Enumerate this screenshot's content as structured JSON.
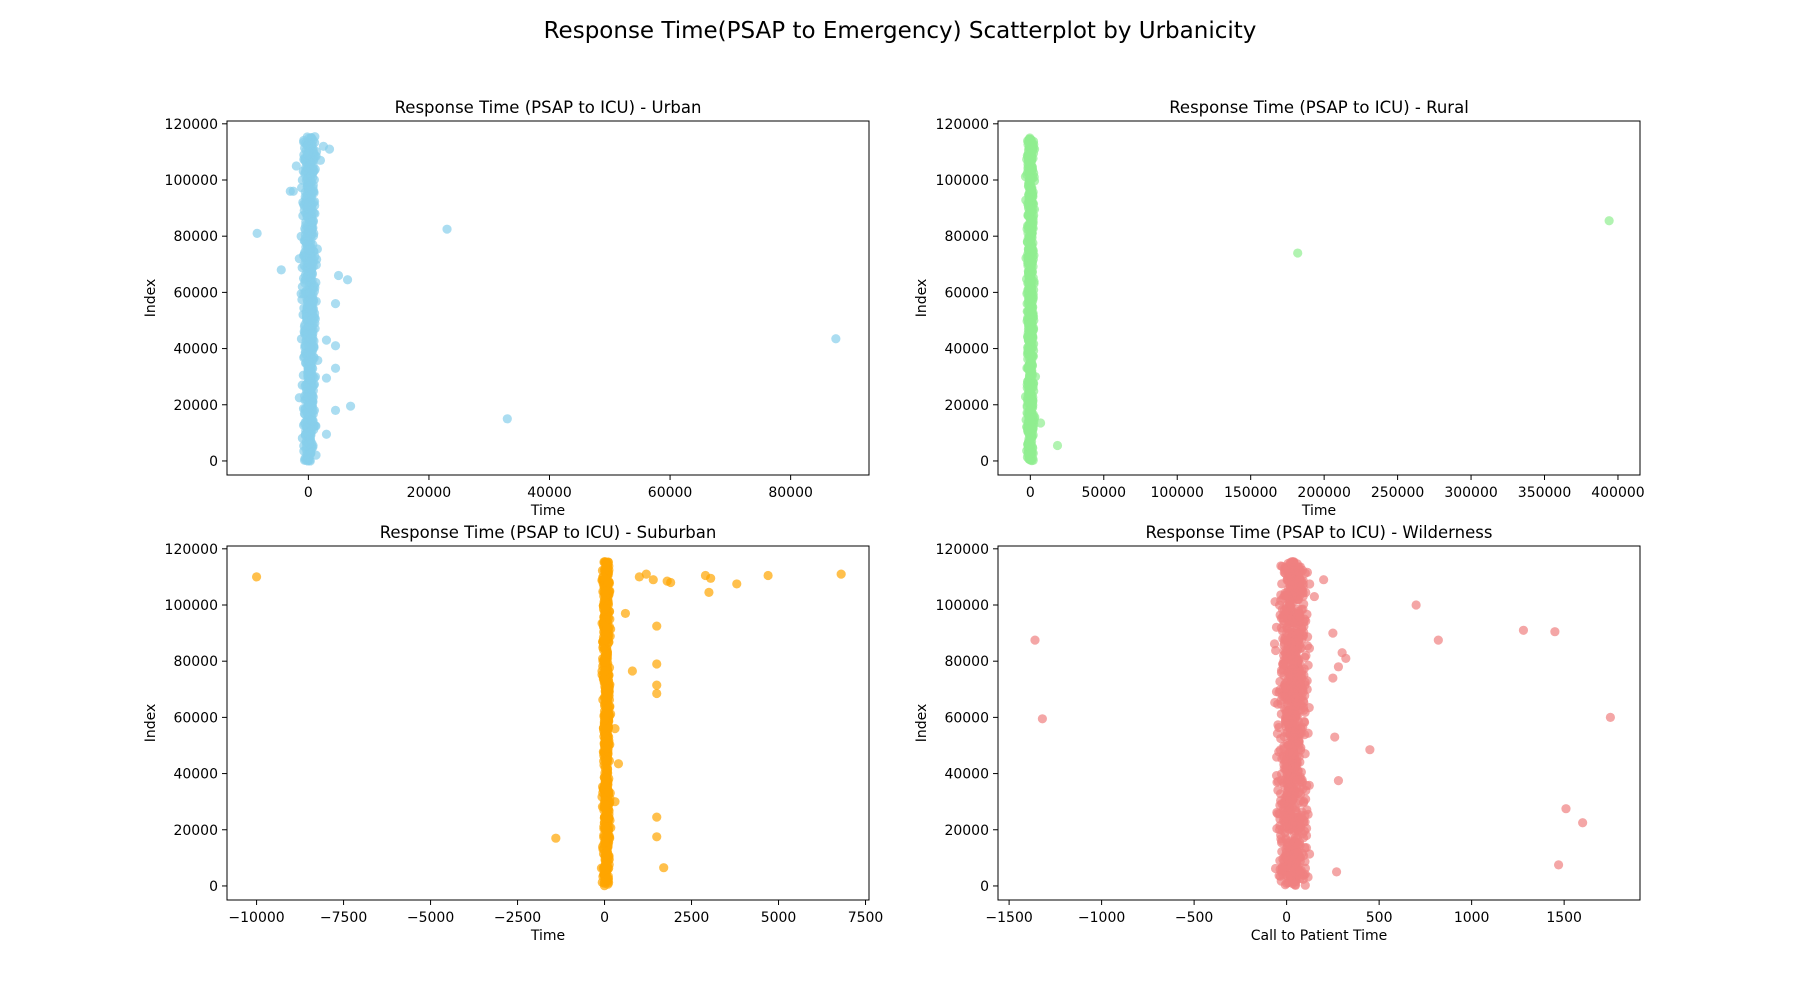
{
  "figure": {
    "title": "Response Time(PSAP to Emergency) Scatterplot by Urbanicity"
  },
  "chart_data": [
    {
      "type": "scatter",
      "title": "Response Time (PSAP to ICU) - Urban",
      "xlabel": "Time",
      "ylabel": "Index",
      "xlim": [
        -13500,
        93000
      ],
      "ylim": [
        -5000,
        121000
      ],
      "xticks": [
        0,
        20000,
        40000,
        60000,
        80000
      ],
      "yticks": [
        0,
        20000,
        40000,
        60000,
        80000,
        100000,
        120000
      ],
      "color": "#87CEEB",
      "series": [
        {
          "band": {
            "x_center": 200,
            "x_width": 1500,
            "y_min": 0,
            "y_max": 115500,
            "count": 700
          },
          "points": [
            [
              -8500,
              81000
            ],
            [
              -3000,
              96000
            ],
            [
              -2500,
              96000
            ],
            [
              -2000,
              105000
            ],
            [
              -1500,
              72000
            ],
            [
              -1000,
              100000
            ],
            [
              -1200,
              59500
            ],
            [
              -1000,
              62000
            ],
            [
              -800,
              65000
            ],
            [
              -4500,
              68000
            ],
            [
              -1500,
              22500
            ],
            [
              2500,
              112000
            ],
            [
              3500,
              111000
            ],
            [
              2000,
              107000
            ],
            [
              5000,
              66000
            ],
            [
              6500,
              64500
            ],
            [
              4500,
              56000
            ],
            [
              4500,
              41000
            ],
            [
              3000,
              43000
            ],
            [
              4500,
              33000
            ],
            [
              3000,
              29500
            ],
            [
              7000,
              19500
            ],
            [
              4500,
              18000
            ],
            [
              3000,
              9500
            ],
            [
              23000,
              82500
            ],
            [
              33000,
              15000
            ],
            [
              87500,
              43500
            ]
          ]
        }
      ]
    },
    {
      "type": "scatter",
      "title": "Response Time (PSAP to ICU) - Rural",
      "xlabel": "Time",
      "ylabel": "Index",
      "xlim": [
        -22000,
        415000
      ],
      "ylim": [
        -5000,
        121000
      ],
      "xticks": [
        0,
        50000,
        100000,
        150000,
        200000,
        250000,
        300000,
        350000,
        400000
      ],
      "yticks": [
        0,
        20000,
        40000,
        60000,
        80000,
        100000,
        120000
      ],
      "color": "#90EE90",
      "series": [
        {
          "band": {
            "x_center": 0,
            "x_width": 3500,
            "y_min": 0,
            "y_max": 115500,
            "count": 700
          },
          "points": [
            [
              3500,
              30000
            ],
            [
              7000,
              13500
            ],
            [
              18500,
              5500
            ],
            [
              182000,
              74000
            ],
            [
              394000,
              85500
            ]
          ]
        }
      ]
    },
    {
      "type": "scatter",
      "title": "Response Time (PSAP to ICU) - Suburban",
      "xlabel": "Time",
      "ylabel": "Index",
      "xlim": [
        -10850,
        7600
      ],
      "ylim": [
        -5000,
        121000
      ],
      "xticks": [
        -10000,
        -7500,
        -5000,
        -2500,
        0,
        2500,
        5000,
        7500
      ],
      "xtick_labels": [
        "−10000",
        "−7500",
        "−5000",
        "−2500",
        "0",
        "2500",
        "5000",
        "7500"
      ],
      "yticks": [
        0,
        20000,
        40000,
        60000,
        80000,
        100000,
        120000
      ],
      "color": "#FFA500",
      "series": [
        {
          "band": {
            "x_center": 50,
            "x_width": 150,
            "y_min": 0,
            "y_max": 115500,
            "count": 700
          },
          "points": [
            [
              -10000,
              110000
            ],
            [
              -1400,
              17000
            ],
            [
              300,
              30000
            ],
            [
              400,
              43500
            ],
            [
              300,
              56000
            ],
            [
              600,
              97000
            ],
            [
              800,
              76500
            ],
            [
              1000,
              110000
            ],
            [
              1200,
              111000
            ],
            [
              1400,
              109000
            ],
            [
              1500,
              92500
            ],
            [
              1500,
              79000
            ],
            [
              1500,
              71500
            ],
            [
              1500,
              68500
            ],
            [
              1500,
              24500
            ],
            [
              1500,
              17500
            ],
            [
              1700,
              6500
            ],
            [
              1800,
              108500
            ],
            [
              1900,
              108000
            ],
            [
              2900,
              110500
            ],
            [
              3000,
              104500
            ],
            [
              3050,
              109500
            ],
            [
              3800,
              107500
            ],
            [
              4700,
              110500
            ],
            [
              6800,
              111000
            ]
          ]
        }
      ]
    },
    {
      "type": "scatter",
      "title": "Response Time (PSAP to ICU) - Wilderness",
      "xlabel": "Call to Patient Time",
      "ylabel": "Index",
      "xlim": [
        -1560,
        1910
      ],
      "ylim": [
        -5000,
        121000
      ],
      "xticks": [
        -1500,
        -1000,
        -500,
        0,
        500,
        1000,
        1500
      ],
      "xtick_labels": [
        "−1500",
        "−1000",
        "−500",
        "0",
        "500",
        "1000",
        "1500"
      ],
      "yticks": [
        0,
        20000,
        40000,
        60000,
        80000,
        100000,
        120000
      ],
      "color": "#F08080",
      "series": [
        {
          "band": {
            "x_center": 30,
            "x_width": 110,
            "y_min": 0,
            "y_max": 115500,
            "count": 900
          },
          "points": [
            [
              150,
              103000
            ],
            [
              200,
              109000
            ],
            [
              250,
              90000
            ],
            [
              300,
              83000
            ],
            [
              320,
              81000
            ],
            [
              280,
              78000
            ],
            [
              250,
              74000
            ],
            [
              260,
              53000
            ],
            [
              280,
              37500
            ],
            [
              270,
              5000
            ],
            [
              450,
              48500
            ],
            [
              700,
              100000
            ],
            [
              820,
              87500
            ],
            [
              1280,
              91000
            ],
            [
              1450,
              90500
            ],
            [
              1510,
              27500
            ],
            [
              1600,
              22500
            ],
            [
              1470,
              7500
            ],
            [
              1750,
              60000
            ],
            [
              -1360,
              87500
            ],
            [
              -1320,
              59500
            ]
          ]
        }
      ]
    }
  ]
}
